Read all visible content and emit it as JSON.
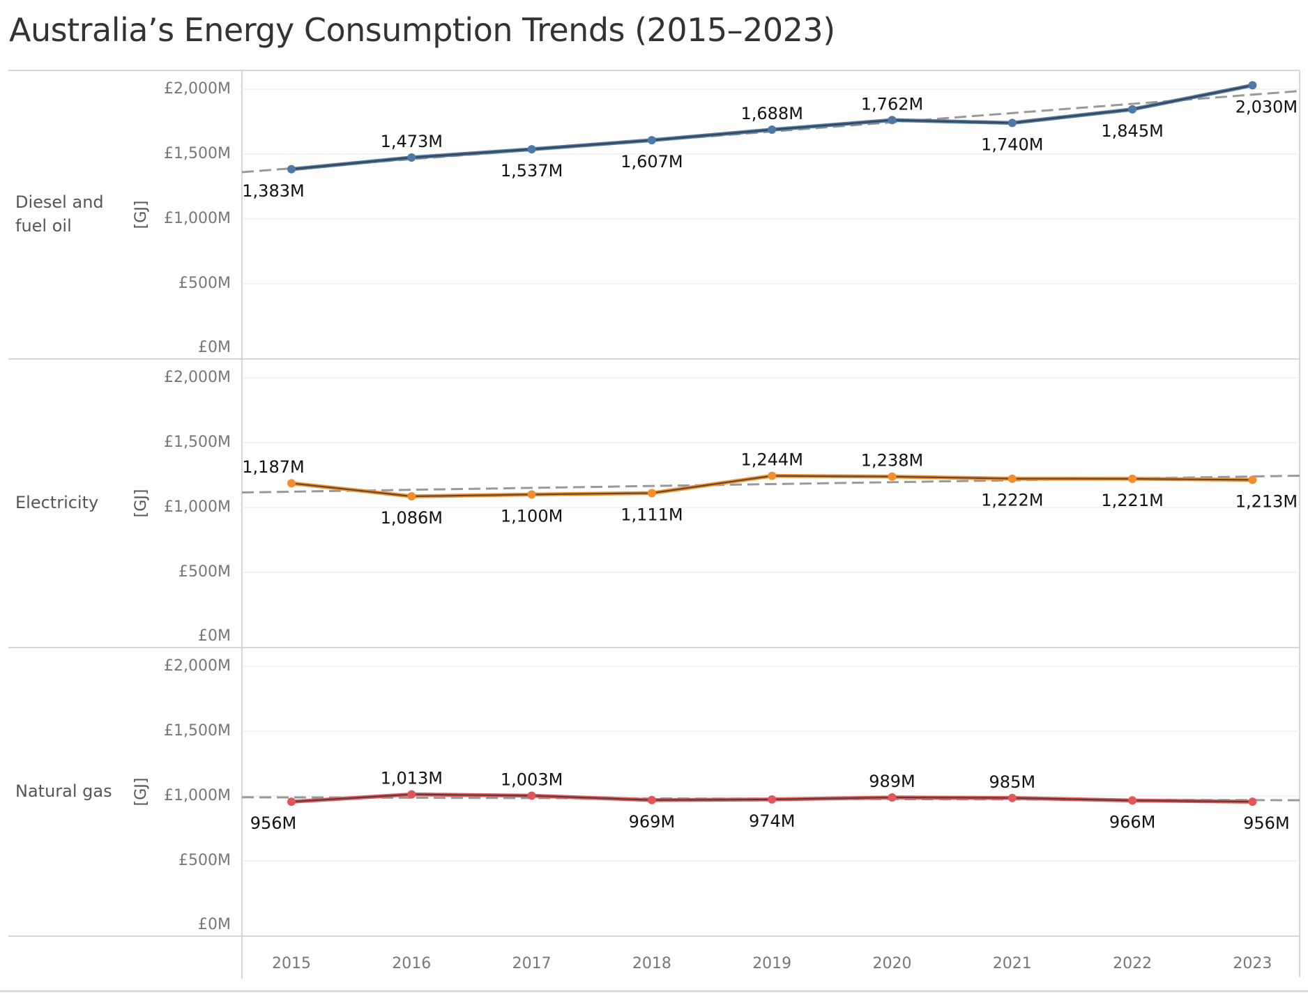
{
  "title": "Australia’s Energy Consumption Trends (2015–2023)",
  "chart_data": {
    "type": "line",
    "title": "Australia’s Energy Consumption Trends (2015–2023)",
    "categories": [
      "2015",
      "2016",
      "2017",
      "2018",
      "2019",
      "2020",
      "2021",
      "2022",
      "2023"
    ],
    "ylabel": "[GJ]",
    "ylim": [
      0,
      2100
    ],
    "y_ticks": [
      {
        "value": 0,
        "label": "£0M"
      },
      {
        "value": 500,
        "label": "£500M"
      },
      {
        "value": 1000,
        "label": "£1,000M"
      },
      {
        "value": 1500,
        "label": "£1,500M"
      },
      {
        "value": 2000,
        "label": "£2,000M"
      }
    ],
    "trend_lines": true,
    "grid": true,
    "series": [
      {
        "name": "Diesel and fuel oil",
        "name_lines": [
          "Diesel and",
          "fuel oil"
        ],
        "color": "#4e79a7",
        "values": [
          1383,
          1473,
          1537,
          1607,
          1688,
          1762,
          1740,
          1845,
          2030
        ],
        "labels": [
          "1,383M",
          "1,473M",
          "1,537M",
          "1,607M",
          "1,688M",
          "1,762M",
          "1,740M",
          "1,845M",
          "2,030M"
        ],
        "label_positions": [
          "below",
          "above",
          "below",
          "below",
          "above",
          "above",
          "below",
          "below",
          "below"
        ]
      },
      {
        "name": "Electricity",
        "name_lines": [
          "Electricity"
        ],
        "color": "#f28e2b",
        "values": [
          1187,
          1086,
          1100,
          1111,
          1244,
          1238,
          1222,
          1221,
          1213
        ],
        "labels": [
          "1,187M",
          "1,086M",
          "1,100M",
          "1,111M",
          "1,244M",
          "1,238M",
          "1,222M",
          "1,221M",
          "1,213M"
        ],
        "label_positions": [
          "above",
          "below",
          "below",
          "below",
          "above",
          "above",
          "below",
          "below",
          "below"
        ]
      },
      {
        "name": "Natural gas",
        "name_lines": [
          "Natural gas"
        ],
        "color": "#e15759",
        "values": [
          956,
          1013,
          1003,
          969,
          974,
          989,
          985,
          966,
          956
        ],
        "labels": [
          "956M",
          "1,013M",
          "1,003M",
          "969M",
          "974M",
          "989M",
          "985M",
          "966M",
          "956M"
        ],
        "label_positions": [
          "below",
          "above",
          "above",
          "below",
          "below",
          "above",
          "above",
          "below",
          "below"
        ]
      }
    ]
  }
}
